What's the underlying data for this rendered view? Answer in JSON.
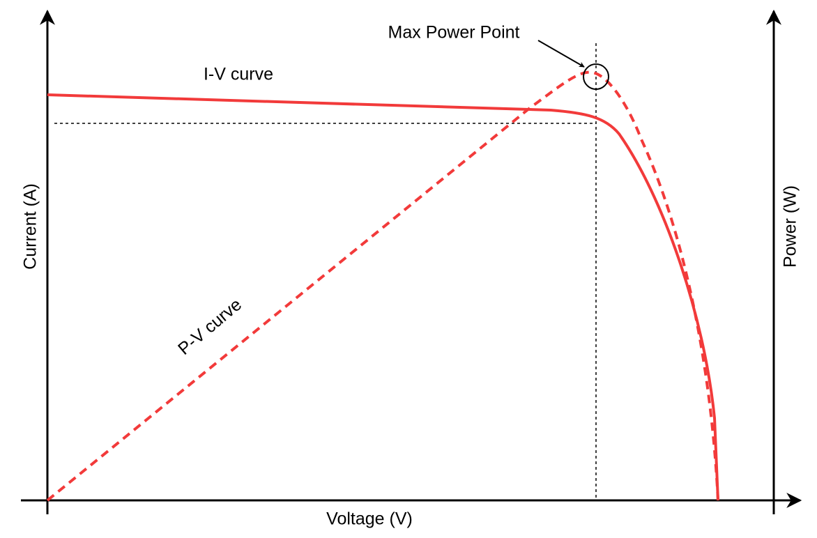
{
  "labels": {
    "max_power_point": "Max Power Point",
    "iv_curve": "I-V curve",
    "pv_curve": "P-V curve",
    "y_axis_left": "Current (A)",
    "y_axis_right": "Power (W)",
    "x_axis": "Voltage (V)"
  }
}
